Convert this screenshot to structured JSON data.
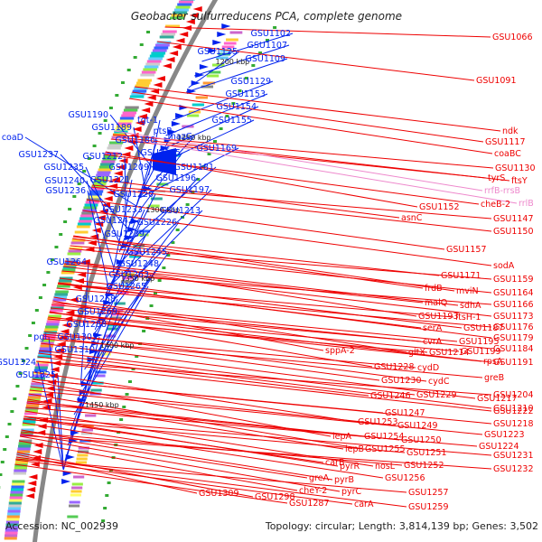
{
  "title": "Geobacter sulfurreducens PCA, complete genome",
  "footer": {
    "accession": "Accession: NC_002939",
    "summary": "Topology: circular; Length: 3,814,139 bp; Genes: 3,502"
  },
  "colors": {
    "forward_genes": "#0022ee",
    "reverse_genes": "#ee0000",
    "rna_genes": "#ee88cc",
    "backbone": "#888888"
  },
  "kbp_ticks": [
    "1200 kbp",
    "1250 kbp",
    "1300 kbp",
    "1350 kbp",
    "1400 kbp",
    "1450 kbp"
  ],
  "left_labels": [
    "GSU1102",
    "GSU1107",
    "GSU1109",
    "GSU1125",
    "GSU1129",
    "GSU1153",
    "GSU1154",
    "GSU1155",
    "GSU1169",
    "GSU1190",
    "tgt-1",
    "GSU1189",
    "mazG",
    "ptsP",
    "GSU1186",
    "coaD",
    "GSU1185",
    "GSU1237",
    "GSU1212",
    "GSU1235",
    "GSU1181",
    "GSU1209",
    "GSU1240",
    "GSU1221",
    "GSU1196",
    "GSU1236",
    "GSU1197",
    "GSU1220",
    "GSU1213",
    "GSU1233",
    "GSU1242",
    "GSU1226",
    "GSU1239",
    "GSU1245",
    "GSU1248",
    "GSU1264",
    "GSU1263",
    "GSU1265",
    "GSU1268",
    "GSU1269",
    "GSU1288",
    "pgi",
    "GSU1305",
    "GSU1310",
    "GSU1324",
    "GSU1325"
  ],
  "right_labels": [
    "GSU1066",
    "GSU1091",
    "ndk",
    "GSU1117",
    "coaBC",
    "GSU1130",
    "tyrS",
    "ftsY",
    "cheB-2",
    "GSU1152",
    "GSU1147",
    "asnC",
    "GSU1150",
    "GSU1157",
    "sodA",
    "GSU1159",
    "GSU1171",
    "GSU1164",
    "frdB",
    "mviN",
    "GSU1166",
    "malQ",
    "sdhA",
    "GSU1173",
    "GSU1193",
    "ftsH-1",
    "GSU1176",
    "serA",
    "GSU1187",
    "GSU1179",
    "cvrA",
    "GSU1195",
    "GSU1184",
    "sppA-2",
    "gltX",
    "GSU1214",
    "GSU1199",
    "rpsA",
    "GSU1191",
    "GSU1228",
    "cydD",
    "greB",
    "GSU1230",
    "cydC",
    "GSU1217",
    "GSU1204",
    "GSU1246",
    "GSU1229",
    "GSU1222",
    "GSU1210",
    "GSU1247",
    "GSU1249",
    "GSU1218",
    "GSU1253",
    "lepA",
    "GSU1254",
    "GSU1250",
    "GSU1223",
    "lepB",
    "GSU1255",
    "GSU1251",
    "GSU1224",
    "carB",
    "pyrR",
    "nosL",
    "GSU1252",
    "GSU1231",
    "greA",
    "pyrB",
    "GSU1256",
    "GSU1232",
    "GSU1309",
    "GSU1298",
    "cheY-2",
    "pyrC",
    "GSU1257",
    "GSU1287",
    "carA",
    "GSU1259"
  ],
  "rna_labels": [
    "rrfB-rrsB",
    "rrlB"
  ]
}
